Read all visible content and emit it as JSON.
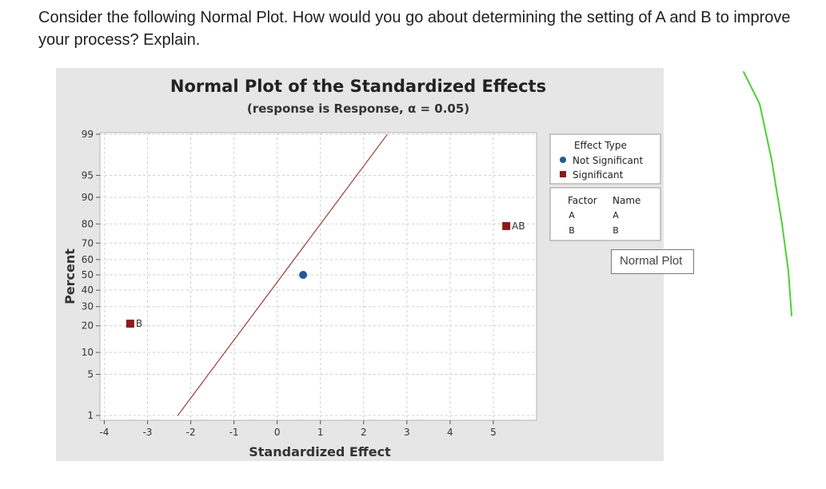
{
  "question": {
    "text": "Consider the following Normal Plot. How would you go about determining the setting of A and B to improve your process? Explain."
  },
  "chart_data": {
    "type": "scatter",
    "title": "Normal Plot of the Standardized Effects",
    "subtitle": "(response is Response, α = 0.05)",
    "xlabel": "Standardized Effect",
    "ylabel": "Percent",
    "xlim": [
      -4.1,
      6.0
    ],
    "x_ticks": [
      -4,
      -3,
      -2,
      -1,
      0,
      1,
      2,
      3,
      4,
      5
    ],
    "y_ticks": [
      1,
      5,
      10,
      20,
      30,
      40,
      50,
      60,
      70,
      80,
      90,
      95,
      99
    ],
    "y_scale": "normal-probability",
    "grid": true,
    "points": [
      {
        "label": "B",
        "x": -3.4,
        "y": 21,
        "type": "Significant"
      },
      {
        "label": "",
        "x": 0.6,
        "y": 50,
        "type": "Not Significant"
      },
      {
        "label": "AB",
        "x": 5.3,
        "y": 79,
        "type": "Significant"
      }
    ],
    "reference_line": {
      "from": [
        -2.3,
        1
      ],
      "to": [
        2.55,
        99
      ]
    },
    "legend_position": "right",
    "legend": {
      "title": "Effect Type",
      "entries": [
        {
          "name": "Not Significant",
          "color": "#1f5b99",
          "marker": "circle"
        },
        {
          "name": "Significant",
          "color": "#8b1a1a",
          "marker": "square"
        }
      ]
    },
    "factor_table": {
      "headers": [
        "Factor",
        "Name"
      ],
      "rows": [
        [
          "A",
          "A"
        ],
        [
          "B",
          "B"
        ]
      ]
    }
  },
  "tooltip": {
    "text": "Normal Plot"
  },
  "colors": {
    "panel_bg": "#e6e6e6",
    "plot_bg": "#ffffff",
    "not_significant": "#1f5b99",
    "significant": "#8b1a1a",
    "reference_line": "#8b1a1a",
    "annotation_stroke": "#4cd137"
  }
}
